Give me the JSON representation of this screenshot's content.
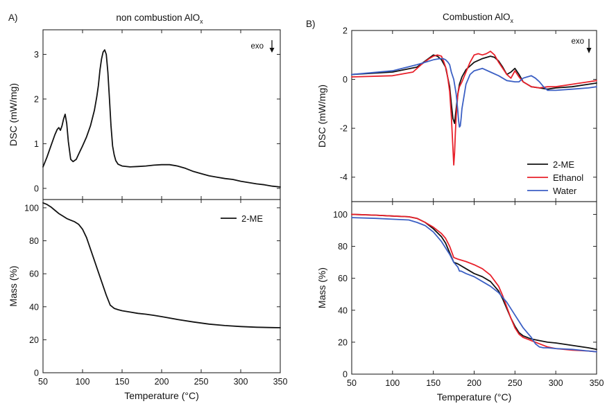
{
  "panels": [
    {
      "label": "A)",
      "title_main": "non combustion AlO",
      "title_sub": "x"
    },
    {
      "label": "B)",
      "title_main": "Combustion AlO",
      "title_sub": "x"
    }
  ],
  "annotations": {
    "exo": "exo"
  },
  "colors": {
    "2-ME": "#111111",
    "Ethanol": "#e8202a",
    "Water": "#3b5fc4"
  },
  "chart_data": [
    {
      "type": "line",
      "id": "A-top",
      "xlabel": "",
      "ylabel": "DSC (mW/mg)",
      "xlim": [
        50,
        350
      ],
      "ylim": [
        -0.25,
        3.55
      ],
      "xticks": [
        50,
        100,
        150,
        200,
        250,
        300,
        350
      ],
      "yticks": [
        0,
        1,
        2,
        3
      ],
      "series": [
        {
          "name": "",
          "color": "#111111",
          "x": [
            50,
            55,
            60,
            65,
            68,
            70,
            72,
            74,
            76,
            78,
            80,
            82,
            85,
            88,
            92,
            96,
            100,
            105,
            110,
            115,
            118,
            120,
            122,
            124,
            126,
            128,
            130,
            132,
            134,
            136,
            138,
            140,
            142,
            145,
            150,
            160,
            170,
            180,
            190,
            200,
            210,
            220,
            230,
            240,
            250,
            260,
            270,
            280,
            290,
            300,
            310,
            320,
            330,
            340,
            350
          ],
          "y": [
            0.48,
            0.7,
            0.95,
            1.2,
            1.32,
            1.36,
            1.3,
            1.4,
            1.55,
            1.66,
            1.45,
            1.05,
            0.65,
            0.6,
            0.65,
            0.8,
            0.95,
            1.15,
            1.4,
            1.75,
            2.05,
            2.3,
            2.65,
            2.9,
            3.05,
            3.1,
            3.0,
            2.6,
            2.0,
            1.4,
            0.95,
            0.75,
            0.62,
            0.54,
            0.5,
            0.48,
            0.49,
            0.5,
            0.52,
            0.53,
            0.53,
            0.5,
            0.45,
            0.38,
            0.33,
            0.28,
            0.25,
            0.22,
            0.2,
            0.16,
            0.13,
            0.1,
            0.08,
            0.05,
            0.03
          ]
        }
      ]
    },
    {
      "type": "line",
      "id": "A-bottom",
      "xlabel": "Temperature (°C)",
      "ylabel": "Mass (%)",
      "xlim": [
        50,
        350
      ],
      "ylim": [
        0,
        105
      ],
      "xticks": [
        50,
        100,
        150,
        200,
        250,
        300,
        350
      ],
      "yticks": [
        0,
        20,
        40,
        60,
        80,
        100
      ],
      "legend": {
        "position": "top-right"
      },
      "series": [
        {
          "name": "2-ME",
          "color": "#111111",
          "x": [
            50,
            55,
            60,
            65,
            70,
            75,
            80,
            85,
            90,
            95,
            100,
            105,
            110,
            115,
            120,
            125,
            130,
            135,
            140,
            145,
            150,
            160,
            170,
            180,
            190,
            200,
            220,
            240,
            260,
            280,
            300,
            320,
            340,
            350
          ],
          "y": [
            103,
            102,
            100.5,
            98.5,
            96.5,
            95,
            93.5,
            92.5,
            91.5,
            90,
            87,
            82,
            75,
            68,
            61,
            54,
            47,
            41,
            39,
            38.2,
            37.6,
            36.8,
            36,
            35.5,
            34.8,
            34,
            32.3,
            30.8,
            29.5,
            28.6,
            28,
            27.6,
            27.4,
            27.3
          ]
        }
      ]
    },
    {
      "type": "line",
      "id": "B-top",
      "xlabel": "",
      "ylabel": "DSC (mW/mg)",
      "xlim": [
        50,
        350
      ],
      "ylim": [
        -5.0,
        2.0
      ],
      "xticks": [
        50,
        100,
        150,
        200,
        250,
        300,
        350
      ],
      "yticks": [
        -4,
        -2,
        0,
        2
      ],
      "legend": {
        "position": "bottom-right"
      },
      "series": [
        {
          "name": "2-ME",
          "color": "#111111",
          "x": [
            50,
            100,
            130,
            140,
            150,
            155,
            160,
            165,
            170,
            172,
            174,
            176,
            177,
            178,
            180,
            182,
            185,
            190,
            200,
            210,
            220,
            225,
            230,
            235,
            240,
            245,
            250,
            255,
            260,
            265,
            270,
            280,
            290,
            300,
            320,
            340,
            350
          ],
          "y": [
            0.2,
            0.3,
            0.5,
            0.75,
            1.0,
            0.95,
            0.8,
            0.5,
            -0.3,
            -1.0,
            -1.6,
            -1.8,
            -1.5,
            -1.2,
            -0.6,
            -0.2,
            0.1,
            0.4,
            0.7,
            0.85,
            0.95,
            0.9,
            0.75,
            0.5,
            0.2,
            0.3,
            0.45,
            0.2,
            -0.1,
            -0.2,
            -0.3,
            -0.35,
            -0.4,
            -0.35,
            -0.3,
            -0.2,
            -0.15
          ]
        },
        {
          "name": "Ethanol",
          "color": "#e8202a",
          "x": [
            50,
            100,
            125,
            135,
            145,
            150,
            155,
            160,
            163,
            166,
            168,
            170,
            172,
            174,
            175,
            176,
            177,
            178,
            180,
            182,
            185,
            190,
            195,
            200,
            205,
            210,
            215,
            220,
            225,
            230,
            240,
            245,
            250,
            255,
            260,
            270,
            280,
            290,
            300,
            320,
            340,
            350
          ],
          "y": [
            0.1,
            0.15,
            0.3,
            0.6,
            0.85,
            0.95,
            1.0,
            0.95,
            0.7,
            0.4,
            0.0,
            -0.5,
            -1.5,
            -2.8,
            -3.5,
            -3.0,
            -2.2,
            -1.5,
            -0.6,
            -0.3,
            -0.1,
            0.3,
            0.7,
            1.0,
            1.05,
            1.0,
            1.05,
            1.15,
            1.0,
            0.7,
            0.2,
            0.05,
            0.35,
            0.1,
            -0.1,
            -0.3,
            -0.35,
            -0.3,
            -0.3,
            -0.2,
            -0.1,
            -0.05
          ]
        },
        {
          "name": "Water",
          "color": "#3b5fc4",
          "x": [
            50,
            100,
            130,
            140,
            150,
            158,
            162,
            165,
            168,
            170,
            172,
            175,
            178,
            180,
            181,
            182,
            183,
            184,
            185,
            188,
            190,
            195,
            200,
            210,
            220,
            230,
            240,
            250,
            255,
            260,
            265,
            270,
            275,
            280,
            285,
            290,
            300,
            320,
            340,
            350
          ],
          "y": [
            0.2,
            0.35,
            0.6,
            0.7,
            0.8,
            0.85,
            0.85,
            0.8,
            0.7,
            0.6,
            0.3,
            0.0,
            -0.6,
            -1.3,
            -1.7,
            -1.95,
            -1.9,
            -1.6,
            -1.2,
            -0.6,
            -0.2,
            0.2,
            0.35,
            0.45,
            0.3,
            0.15,
            -0.05,
            -0.1,
            -0.1,
            0.05,
            0.1,
            0.15,
            0.05,
            -0.1,
            -0.3,
            -0.45,
            -0.45,
            -0.4,
            -0.35,
            -0.3
          ]
        }
      ]
    },
    {
      "type": "line",
      "id": "B-bottom",
      "xlabel": "Temperature (°C)",
      "ylabel": "Mass (%)",
      "xlim": [
        50,
        350
      ],
      "ylim": [
        0,
        108
      ],
      "xticks": [
        50,
        100,
        150,
        200,
        250,
        300,
        350
      ],
      "yticks": [
        0,
        20,
        40,
        60,
        80,
        100
      ],
      "series": [
        {
          "name": "2-ME",
          "color": "#111111",
          "x": [
            50,
            80,
            100,
            120,
            130,
            140,
            150,
            160,
            165,
            170,
            175,
            180,
            190,
            200,
            210,
            220,
            230,
            235,
            240,
            245,
            250,
            255,
            260,
            270,
            280,
            290,
            300,
            320,
            340,
            350
          ],
          "y": [
            100,
            99.5,
            99,
            98.5,
            97.5,
            95,
            91,
            86,
            82,
            76,
            70,
            69,
            66,
            63,
            61,
            58,
            52,
            47,
            41,
            35,
            30,
            26,
            24,
            22,
            21,
            20,
            19.5,
            18,
            16.5,
            15.5
          ]
        },
        {
          "name": "Ethanol",
          "color": "#e8202a",
          "x": [
            50,
            80,
            100,
            120,
            130,
            140,
            150,
            160,
            165,
            170,
            175,
            180,
            190,
            200,
            210,
            220,
            230,
            235,
            240,
            245,
            250,
            255,
            260,
            270,
            280,
            290,
            300,
            320,
            340,
            350
          ],
          "y": [
            100,
            99.5,
            99,
            98.5,
            97.5,
            95,
            92,
            88,
            85,
            80,
            73,
            72,
            70.5,
            68.5,
            66,
            62,
            55,
            49,
            42,
            35,
            29,
            25,
            23,
            21,
            19,
            17,
            16,
            15,
            14.5,
            14
          ]
        },
        {
          "name": "Water",
          "color": "#3b5fc4",
          "x": [
            50,
            80,
            100,
            120,
            130,
            140,
            150,
            160,
            165,
            170,
            175,
            180,
            182,
            184,
            190,
            200,
            210,
            220,
            230,
            240,
            250,
            255,
            260,
            270,
            275,
            280,
            285,
            290,
            300,
            320,
            340,
            350
          ],
          "y": [
            98,
            97.5,
            97,
            96.5,
            95,
            93,
            89,
            83,
            79,
            75,
            70,
            67,
            64.5,
            64.5,
            63,
            61,
            58,
            55,
            51,
            45,
            37,
            33,
            29,
            23,
            19,
            17,
            16.5,
            16.5,
            16,
            15.5,
            14.5,
            14
          ]
        }
      ]
    }
  ]
}
